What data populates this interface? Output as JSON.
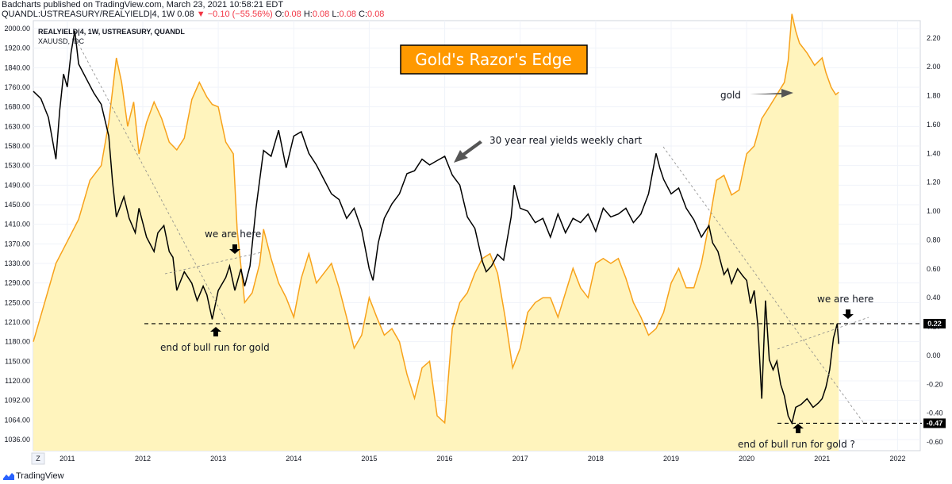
{
  "header": {
    "published": "Badcharts published on TradingView.com, March 23, 2021 10:58:21 EDT",
    "symbol": "QUANDL:USTREASURY/REALYIELD|4, 1W",
    "last": "0.08",
    "change_arrow": "▼",
    "change": "−0.10 (−55.56%)",
    "o_label": "O:",
    "o_val": "0.08",
    "h_label": "H:",
    "h_val": "0.08",
    "l_label": "L:",
    "l_val": "0.08",
    "c_label": "C:",
    "c_val": "0.08"
  },
  "footer": {
    "brand": "TradingView",
    "z_button": "Z"
  },
  "colors": {
    "gold": "#f7a21b",
    "gold_fill": "#fff4bd",
    "yield": "#000000",
    "title_bg": "#ff9900",
    "grid": "#f0f3fa"
  },
  "chart_data": {
    "type": "line",
    "title": "Gold's Razor's Edge",
    "legend": [
      "REALYIELD|4, 1W, USTREASURY, QUANDL",
      "XAUUSD, IDC"
    ],
    "x_ticks": [
      "2011",
      "2012",
      "2013",
      "2014",
      "2015",
      "2016",
      "2017",
      "2018",
      "2019",
      "2020",
      "2021",
      "2022"
    ],
    "x_range": [
      2010.55,
      2022.3
    ],
    "left_axis": {
      "series": "XAUUSD, IDC",
      "ticks": [
        "2000.00",
        "1920.00",
        "1840.00",
        "1760.00",
        "1680.00",
        "1630.00",
        "1580.00",
        "1530.00",
        "1490.00",
        "1450.00",
        "1410.00",
        "1370.00",
        "1330.00",
        "1290.00",
        "1250.00",
        "1210.00",
        "1180.00",
        "1150.00",
        "1120.00",
        "1092.00",
        "1064.00",
        "1036.00"
      ]
    },
    "right_axis": {
      "series": "REALYIELD|4, 1W, USTREASURY, QUANDL",
      "ticks": [
        "2.20",
        "2.00",
        "1.80",
        "1.60",
        "1.40",
        "1.20",
        "1.00",
        "0.80",
        "0.60",
        "0.40",
        "0.20",
        "0.00",
        "-0.20",
        "-0.40",
        "-0.60"
      ],
      "range": [
        -0.66,
        2.32
      ],
      "markers": [
        {
          "value": 0.22,
          "label": "0.22"
        },
        {
          "value": -0.47,
          "label": "-0.47"
        }
      ]
    },
    "series": [
      {
        "name": "XAUUSD, IDC",
        "axis": "left",
        "points": [
          [
            2010.55,
            1180
          ],
          [
            2010.7,
            1250
          ],
          [
            2010.85,
            1330
          ],
          [
            2011.0,
            1375
          ],
          [
            2011.15,
            1420
          ],
          [
            2011.3,
            1500
          ],
          [
            2011.45,
            1530
          ],
          [
            2011.55,
            1640
          ],
          [
            2011.65,
            1880
          ],
          [
            2011.72,
            1780
          ],
          [
            2011.8,
            1630
          ],
          [
            2011.88,
            1700
          ],
          [
            2011.95,
            1560
          ],
          [
            2012.05,
            1640
          ],
          [
            2012.15,
            1700
          ],
          [
            2012.25,
            1650
          ],
          [
            2012.35,
            1590
          ],
          [
            2012.45,
            1570
          ],
          [
            2012.55,
            1600
          ],
          [
            2012.65,
            1710
          ],
          [
            2012.75,
            1780
          ],
          [
            2012.85,
            1720
          ],
          [
            2012.92,
            1690
          ],
          [
            2013.0,
            1680
          ],
          [
            2013.1,
            1590
          ],
          [
            2013.2,
            1560
          ],
          [
            2013.25,
            1400
          ],
          [
            2013.35,
            1250
          ],
          [
            2013.45,
            1270
          ],
          [
            2013.55,
            1330
          ],
          [
            2013.6,
            1400
          ],
          [
            2013.7,
            1340
          ],
          [
            2013.8,
            1290
          ],
          [
            2013.9,
            1260
          ],
          [
            2014.0,
            1220
          ],
          [
            2014.1,
            1300
          ],
          [
            2014.2,
            1350
          ],
          [
            2014.3,
            1290
          ],
          [
            2014.4,
            1310
          ],
          [
            2014.5,
            1330
          ],
          [
            2014.6,
            1280
          ],
          [
            2014.7,
            1220
          ],
          [
            2014.8,
            1170
          ],
          [
            2014.9,
            1190
          ],
          [
            2015.0,
            1260
          ],
          [
            2015.1,
            1220
          ],
          [
            2015.2,
            1190
          ],
          [
            2015.3,
            1200
          ],
          [
            2015.4,
            1180
          ],
          [
            2015.5,
            1130
          ],
          [
            2015.6,
            1095
          ],
          [
            2015.7,
            1140
          ],
          [
            2015.8,
            1150
          ],
          [
            2015.9,
            1070
          ],
          [
            2016.0,
            1060
          ],
          [
            2016.1,
            1200
          ],
          [
            2016.2,
            1250
          ],
          [
            2016.3,
            1270
          ],
          [
            2016.4,
            1310
          ],
          [
            2016.5,
            1340
          ],
          [
            2016.6,
            1350
          ],
          [
            2016.7,
            1310
          ],
          [
            2016.8,
            1220
          ],
          [
            2016.9,
            1140
          ],
          [
            2017.0,
            1170
          ],
          [
            2017.1,
            1230
          ],
          [
            2017.2,
            1250
          ],
          [
            2017.3,
            1260
          ],
          [
            2017.4,
            1260
          ],
          [
            2017.5,
            1220
          ],
          [
            2017.6,
            1270
          ],
          [
            2017.7,
            1320
          ],
          [
            2017.8,
            1280
          ],
          [
            2017.9,
            1260
          ],
          [
            2018.0,
            1330
          ],
          [
            2018.1,
            1340
          ],
          [
            2018.2,
            1330
          ],
          [
            2018.3,
            1340
          ],
          [
            2018.4,
            1300
          ],
          [
            2018.5,
            1250
          ],
          [
            2018.6,
            1220
          ],
          [
            2018.7,
            1190
          ],
          [
            2018.8,
            1200
          ],
          [
            2018.9,
            1230
          ],
          [
            2019.0,
            1290
          ],
          [
            2019.1,
            1320
          ],
          [
            2019.2,
            1280
          ],
          [
            2019.3,
            1280
          ],
          [
            2019.4,
            1330
          ],
          [
            2019.5,
            1410
          ],
          [
            2019.6,
            1500
          ],
          [
            2019.7,
            1510
          ],
          [
            2019.8,
            1470
          ],
          [
            2019.9,
            1480
          ],
          [
            2020.0,
            1560
          ],
          [
            2020.1,
            1580
          ],
          [
            2020.2,
            1650
          ],
          [
            2020.3,
            1680
          ],
          [
            2020.4,
            1730
          ],
          [
            2020.5,
            1780
          ],
          [
            2020.55,
            1870
          ],
          [
            2020.6,
            2060
          ],
          [
            2020.65,
            1990
          ],
          [
            2020.7,
            1940
          ],
          [
            2020.8,
            1900
          ],
          [
            2020.9,
            1850
          ],
          [
            2021.0,
            1880
          ],
          [
            2021.05,
            1820
          ],
          [
            2021.12,
            1760
          ],
          [
            2021.18,
            1730
          ],
          [
            2021.22,
            1740
          ]
        ]
      },
      {
        "name": "REALYIELD|4, 1W, USTREASURY, QUANDL",
        "axis": "right",
        "points": [
          [
            2010.55,
            1.83
          ],
          [
            2010.65,
            1.78
          ],
          [
            2010.75,
            1.65
          ],
          [
            2010.85,
            1.36
          ],
          [
            2010.9,
            1.7
          ],
          [
            2010.95,
            1.95
          ],
          [
            2011.0,
            1.86
          ],
          [
            2011.05,
            2.1
          ],
          [
            2011.1,
            2.25
          ],
          [
            2011.15,
            2.02
          ],
          [
            2011.25,
            1.92
          ],
          [
            2011.35,
            1.82
          ],
          [
            2011.45,
            1.74
          ],
          [
            2011.55,
            1.52
          ],
          [
            2011.6,
            1.2
          ],
          [
            2011.65,
            0.96
          ],
          [
            2011.75,
            1.1
          ],
          [
            2011.82,
            0.95
          ],
          [
            2011.9,
            0.85
          ],
          [
            2011.95,
            1.02
          ],
          [
            2012.05,
            0.82
          ],
          [
            2012.15,
            0.72
          ],
          [
            2012.2,
            0.85
          ],
          [
            2012.28,
            0.9
          ],
          [
            2012.35,
            0.72
          ],
          [
            2012.4,
            0.68
          ],
          [
            2012.45,
            0.45
          ],
          [
            2012.55,
            0.58
          ],
          [
            2012.65,
            0.5
          ],
          [
            2012.72,
            0.38
          ],
          [
            2012.8,
            0.48
          ],
          [
            2012.85,
            0.42
          ],
          [
            2012.92,
            0.25
          ],
          [
            2013.0,
            0.45
          ],
          [
            2013.1,
            0.54
          ],
          [
            2013.15,
            0.62
          ],
          [
            2013.22,
            0.45
          ],
          [
            2013.3,
            0.6
          ],
          [
            2013.35,
            0.48
          ],
          [
            2013.42,
            0.62
          ],
          [
            2013.5,
            1.02
          ],
          [
            2013.6,
            1.42
          ],
          [
            2013.7,
            1.38
          ],
          [
            2013.8,
            1.56
          ],
          [
            2013.9,
            1.3
          ],
          [
            2014.0,
            1.52
          ],
          [
            2014.1,
            1.55
          ],
          [
            2014.2,
            1.4
          ],
          [
            2014.3,
            1.32
          ],
          [
            2014.4,
            1.22
          ],
          [
            2014.5,
            1.12
          ],
          [
            2014.6,
            1.08
          ],
          [
            2014.7,
            0.95
          ],
          [
            2014.8,
            1.02
          ],
          [
            2014.9,
            0.87
          ],
          [
            2015.0,
            0.6
          ],
          [
            2015.05,
            0.52
          ],
          [
            2015.12,
            0.78
          ],
          [
            2015.2,
            0.95
          ],
          [
            2015.3,
            1.05
          ],
          [
            2015.4,
            1.12
          ],
          [
            2015.5,
            1.26
          ],
          [
            2015.6,
            1.28
          ],
          [
            2015.7,
            1.36
          ],
          [
            2015.8,
            1.32
          ],
          [
            2015.9,
            1.35
          ],
          [
            2016.0,
            1.38
          ],
          [
            2016.1,
            1.25
          ],
          [
            2016.2,
            1.18
          ],
          [
            2016.3,
            0.96
          ],
          [
            2016.4,
            0.88
          ],
          [
            2016.5,
            0.65
          ],
          [
            2016.55,
            0.58
          ],
          [
            2016.62,
            0.62
          ],
          [
            2016.7,
            0.7
          ],
          [
            2016.78,
            0.66
          ],
          [
            2016.88,
            0.96
          ],
          [
            2016.92,
            1.18
          ],
          [
            2017.0,
            1.02
          ],
          [
            2017.1,
            1.0
          ],
          [
            2017.2,
            0.92
          ],
          [
            2017.3,
            0.95
          ],
          [
            2017.4,
            0.82
          ],
          [
            2017.5,
            0.98
          ],
          [
            2017.6,
            0.85
          ],
          [
            2017.7,
            0.95
          ],
          [
            2017.8,
            0.92
          ],
          [
            2017.9,
            0.98
          ],
          [
            2018.0,
            0.86
          ],
          [
            2018.1,
            1.02
          ],
          [
            2018.2,
            0.96
          ],
          [
            2018.3,
            0.98
          ],
          [
            2018.4,
            1.02
          ],
          [
            2018.5,
            0.92
          ],
          [
            2018.6,
            0.98
          ],
          [
            2018.7,
            1.12
          ],
          [
            2018.8,
            1.4
          ],
          [
            2018.85,
            1.3
          ],
          [
            2018.9,
            1.22
          ],
          [
            2019.0,
            1.12
          ],
          [
            2019.1,
            1.16
          ],
          [
            2019.2,
            1.02
          ],
          [
            2019.3,
            0.94
          ],
          [
            2019.4,
            0.82
          ],
          [
            2019.5,
            0.9
          ],
          [
            2019.55,
            0.78
          ],
          [
            2019.62,
            0.72
          ],
          [
            2019.7,
            0.56
          ],
          [
            2019.75,
            0.6
          ],
          [
            2019.8,
            0.5
          ],
          [
            2019.88,
            0.6
          ],
          [
            2019.95,
            0.55
          ],
          [
            2020.0,
            0.52
          ],
          [
            2020.05,
            0.36
          ],
          [
            2020.1,
            0.45
          ],
          [
            2020.15,
            0.2
          ],
          [
            2020.2,
            -0.3
          ],
          [
            2020.25,
            0.38
          ],
          [
            2020.3,
            -0.03
          ],
          [
            2020.35,
            -0.1
          ],
          [
            2020.4,
            -0.04
          ],
          [
            2020.45,
            -0.2
          ],
          [
            2020.5,
            -0.28
          ],
          [
            2020.55,
            -0.42
          ],
          [
            2020.6,
            -0.47
          ],
          [
            2020.65,
            -0.36
          ],
          [
            2020.72,
            -0.34
          ],
          [
            2020.8,
            -0.3
          ],
          [
            2020.88,
            -0.36
          ],
          [
            2020.95,
            -0.33
          ],
          [
            2021.0,
            -0.3
          ],
          [
            2021.05,
            -0.22
          ],
          [
            2021.1,
            -0.1
          ],
          [
            2021.15,
            0.12
          ],
          [
            2021.2,
            0.22
          ],
          [
            2021.22,
            0.08
          ]
        ]
      }
    ],
    "annotations": [
      {
        "text": "30 year real yields weekly chart"
      },
      {
        "text": "gold"
      },
      {
        "text": "we are here"
      },
      {
        "text": "end of bull run for gold"
      },
      {
        "text": "we are here"
      },
      {
        "text": "end of bull run for gold ?"
      }
    ],
    "grid": true
  }
}
